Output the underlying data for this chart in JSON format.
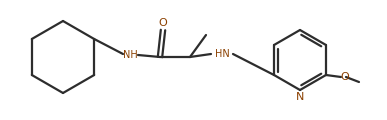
{
  "bg_color": "#ffffff",
  "bond_color": "#2d2d2d",
  "bond_width": 1.6,
  "heteroatom_color": "#8b4000",
  "figsize": [
    3.87,
    1.2
  ],
  "dpi": 100,
  "xlim": [
    0,
    387
  ],
  "ylim": [
    0,
    120
  ]
}
